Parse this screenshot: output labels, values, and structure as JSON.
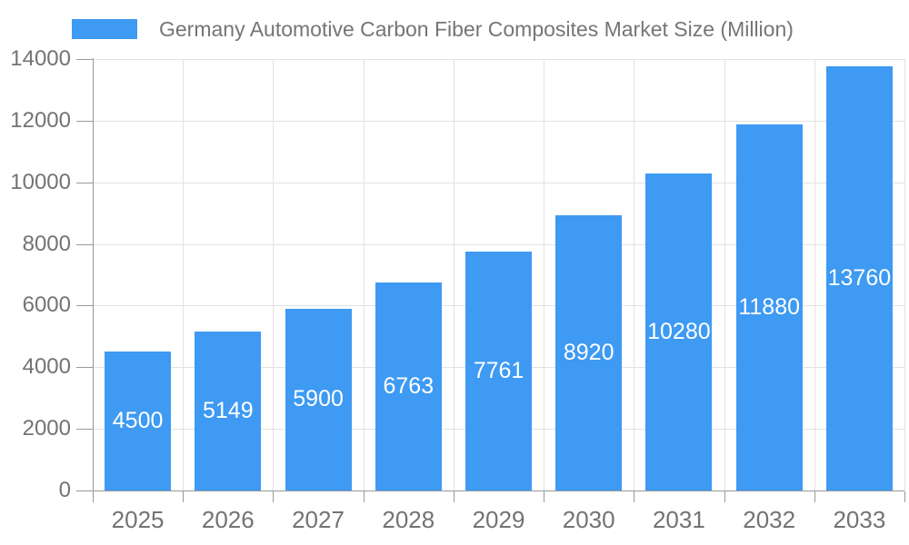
{
  "chart_data": {
    "type": "bar",
    "title": "Germany Automotive Carbon Fiber Composites Market Size (Million)",
    "legend": [
      "Germany Automotive Carbon Fiber Composites Market Size (Million)"
    ],
    "legend_position": "top-center",
    "categories": [
      "2025",
      "2026",
      "2027",
      "2028",
      "2029",
      "2030",
      "2031",
      "2032",
      "2033"
    ],
    "series": [
      {
        "name": "Germany Automotive Carbon Fiber Composites Market Size (Million)",
        "values": [
          4500,
          5149,
          5900,
          6763,
          7761,
          8920,
          10280,
          11880,
          13760
        ]
      }
    ],
    "value_labels_visible": true,
    "xlabel": "",
    "ylabel": "",
    "ylim": [
      0,
      14000
    ],
    "yticks": [
      0,
      2000,
      4000,
      6000,
      8000,
      10000,
      12000,
      14000
    ],
    "grid": true,
    "colors": {
      "bar": "#3E9AF2",
      "value_label": "#FFFFFF",
      "axis_line": "#999999",
      "gridline": "#E2E2E2",
      "tick_label": "#737373",
      "title_text": "#757575",
      "background": "#FFFFFF"
    }
  }
}
